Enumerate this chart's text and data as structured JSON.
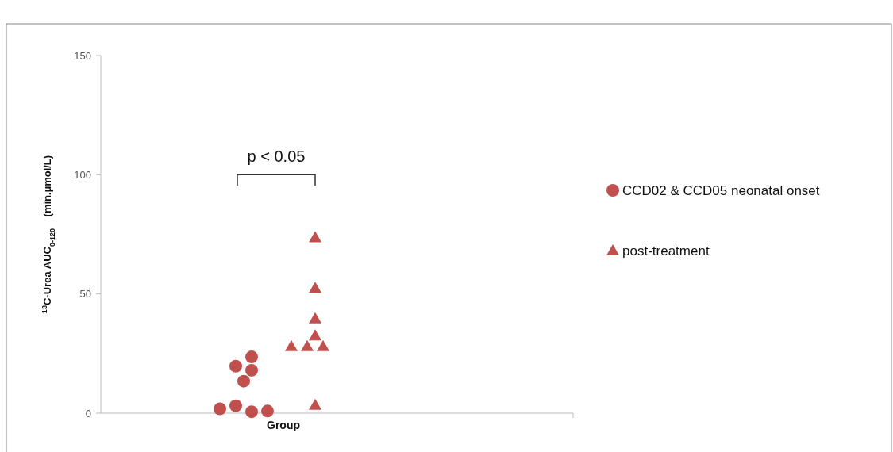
{
  "chart_data": {
    "type": "scatter",
    "ylabel": "$^{13}$C-Urea AUC$_{0-120}$    (min.µmol/L)",
    "categories": [
      "Group"
    ],
    "ylim": [
      0,
      150
    ],
    "yticks": [
      0,
      50,
      100,
      150
    ],
    "grid": false,
    "legend": "right",
    "annotations": [
      "p < 0.05"
    ],
    "series": [
      {
        "name": "CCD02 & CCD05 neonatal onset",
        "color": "#c0504d",
        "marker": "circle",
        "x": [
          "Group",
          "Group",
          "Group",
          "Group",
          "Group",
          "Group",
          "Group",
          "Group"
        ],
        "values": [
          23.6,
          19.7,
          18,
          13.4,
          0.6,
          3.1,
          0.9,
          1.8
        ]
      },
      {
        "name": "post-treatment",
        "color": "#c0504d",
        "marker": "triangle",
        "x": [
          "Group",
          "Group",
          "Group",
          "Group",
          "Group",
          "Group",
          "Group",
          "Group"
        ],
        "values": [
          73.7,
          52.5,
          39.7,
          32.5,
          28,
          28,
          28,
          3.4
        ]
      }
    ]
  }
}
